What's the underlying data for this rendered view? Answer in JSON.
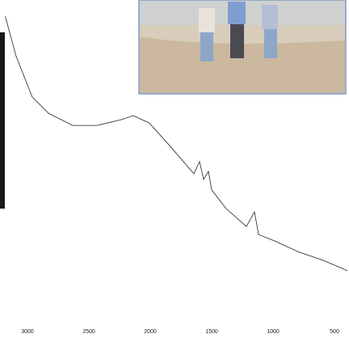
{
  "chart_data": {
    "type": "line",
    "x": [
      3181,
      3092,
      2961,
      2829,
      2632,
      2434,
      2237,
      2138,
      2007,
      1842,
      1645,
      1599,
      1566,
      1526,
      1500,
      1382,
      1217,
      1151,
      1118,
      987,
      789,
      592,
      395
    ],
    "series": [
      {
        "color": "#222222",
        "values": [
          95.2,
          83.3,
          71.3,
          66.5,
          62.9,
          62.9,
          64.6,
          65.8,
          63.6,
          56.9,
          48.6,
          52.2,
          46.9,
          49.3,
          43.8,
          38.3,
          33.0,
          37.3,
          30.6,
          28.7,
          25.4,
          23.0,
          19.9
        ]
      }
    ],
    "xlim": [
      3200,
      400
    ],
    "xticks": [
      3000,
      2500,
      2000,
      1500,
      1000,
      500
    ],
    "ylim": [
      0,
      100
    ]
  }
}
